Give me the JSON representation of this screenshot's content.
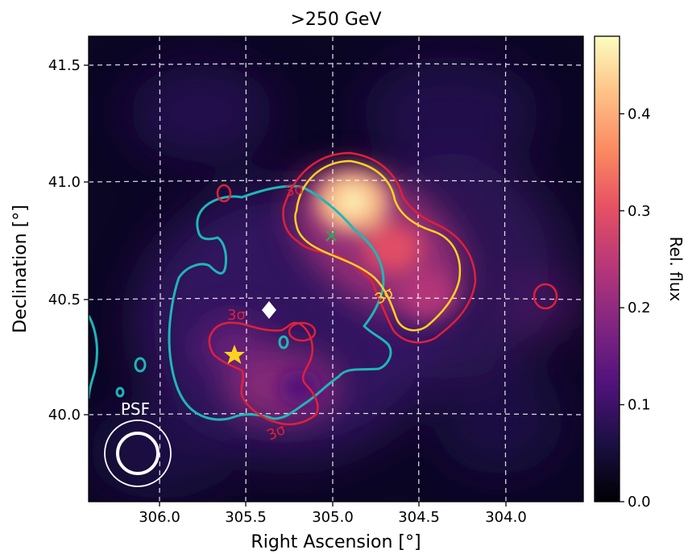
{
  "chart_data": {
    "type": "heatmap",
    "title": ">250 GeV",
    "xlabel": "Right Ascension [°]",
    "ylabel": "Declination [°]",
    "x_ticks": [
      "306.0",
      "305.5",
      "305.0",
      "304.5",
      "304.0"
    ],
    "x_tick_values": [
      306.0,
      305.5,
      305.0,
      304.5,
      304.0
    ],
    "y_ticks": [
      "40.0",
      "40.5",
      "41.0",
      "41.5"
    ],
    "y_tick_values": [
      40.0,
      40.5,
      41.0,
      41.5
    ],
    "xlim": [
      306.46,
      303.63
    ],
    "ylim": [
      39.63,
      41.63
    ],
    "grid": true,
    "colorbar": {
      "label": "Rel. flux",
      "ticks": [
        "0.0",
        "0.1",
        "0.2",
        "0.3",
        "0.4"
      ],
      "tick_values": [
        0.0,
        0.1,
        0.2,
        0.3,
        0.4
      ],
      "range": [
        0.0,
        0.48
      ],
      "colormap": "magma"
    },
    "emission_peaks": [
      {
        "ra": 304.95,
        "dec": 40.92,
        "rel_flux": 0.46
      },
      {
        "ra": 304.72,
        "dec": 40.72,
        "rel_flux": 0.3
      },
      {
        "ra": 304.52,
        "dec": 40.52,
        "rel_flux": 0.28
      },
      {
        "ra": 305.25,
        "dec": 40.12,
        "rel_flux": 0.14
      }
    ],
    "contour_labels": [
      "3σ",
      "3σ",
      "3σ",
      "3σ"
    ],
    "markers": [
      {
        "kind": "cross",
        "ra": 305.02,
        "dec": 40.75,
        "color": "#3a9a5a"
      },
      {
        "kind": "diamond",
        "ra": 305.37,
        "dec": 40.43,
        "color": "#ffffff"
      },
      {
        "kind": "star",
        "ra": 305.55,
        "dec": 40.25,
        "color": "#ffd21f"
      }
    ],
    "psf_label": "PSF"
  },
  "colors": {
    "cyan_contour": "#1fb6b6",
    "red_contour": "#e0203a",
    "yellow_contour": "#ffd21f",
    "grid": "#ffffff"
  }
}
